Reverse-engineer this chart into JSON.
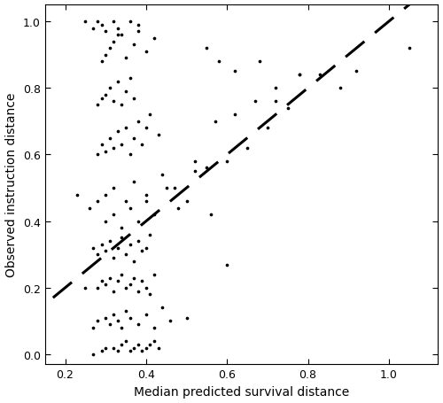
{
  "xlabel": "Median predicted survival distance",
  "ylabel": "Observed instruction distance",
  "xlim": [
    0.15,
    1.12
  ],
  "ylim": [
    -0.03,
    1.05
  ],
  "xticks": [
    0.2,
    0.4,
    0.6,
    0.8,
    1.0
  ],
  "yticks": [
    0.0,
    0.2,
    0.4,
    0.6,
    0.8,
    1.0
  ],
  "dashed_line_x": [
    0.17,
    1.08
  ],
  "dashed_line_y": [
    0.17,
    1.08
  ],
  "scatter_x": [
    0.27,
    0.29,
    0.3,
    0.32,
    0.33,
    0.34,
    0.35,
    0.36,
    0.37,
    0.38,
    0.39,
    0.4,
    0.41,
    0.42,
    0.43,
    0.27,
    0.28,
    0.3,
    0.31,
    0.32,
    0.33,
    0.34,
    0.35,
    0.36,
    0.38,
    0.4,
    0.42,
    0.44,
    0.46,
    0.5,
    0.28,
    0.29,
    0.3,
    0.31,
    0.32,
    0.33,
    0.34,
    0.35,
    0.36,
    0.37,
    0.38,
    0.39,
    0.4,
    0.41,
    0.42,
    0.27,
    0.28,
    0.29,
    0.3,
    0.31,
    0.32,
    0.33,
    0.34,
    0.35,
    0.36,
    0.37,
    0.38,
    0.39,
    0.4,
    0.41,
    0.28,
    0.29,
    0.3,
    0.31,
    0.32,
    0.33,
    0.34,
    0.35,
    0.36,
    0.37,
    0.38,
    0.39,
    0.4,
    0.41,
    0.43,
    0.28,
    0.29,
    0.3,
    0.31,
    0.32,
    0.33,
    0.34,
    0.35,
    0.36,
    0.37,
    0.29,
    0.3,
    0.31,
    0.32,
    0.33,
    0.35,
    0.37,
    0.38,
    0.4,
    0.42,
    0.25,
    0.27,
    0.28,
    0.29,
    0.3,
    0.32,
    0.33,
    0.34,
    0.36,
    0.38,
    0.26,
    0.28,
    0.3,
    0.32,
    0.35,
    0.37,
    0.4,
    0.44,
    0.47,
    0.5,
    0.3,
    0.32,
    0.34,
    0.36,
    0.38,
    0.4,
    0.42,
    0.45,
    0.48,
    0.52,
    0.55,
    0.57,
    0.6,
    0.62,
    0.65,
    0.67,
    0.7,
    0.72,
    0.75,
    0.78,
    0.55,
    0.58,
    0.62,
    0.68,
    0.72,
    0.78,
    0.83,
    0.88,
    0.92,
    1.05,
    0.23,
    0.25,
    0.52,
    0.56,
    0.6
  ],
  "scatter_y": [
    0.0,
    0.01,
    0.02,
    0.02,
    0.01,
    0.03,
    0.04,
    0.01,
    0.02,
    0.03,
    0.01,
    0.02,
    0.03,
    0.04,
    0.02,
    0.08,
    0.1,
    0.11,
    0.09,
    0.12,
    0.1,
    0.08,
    0.13,
    0.11,
    0.09,
    0.12,
    0.08,
    0.14,
    0.1,
    0.11,
    0.2,
    0.22,
    0.21,
    0.23,
    0.19,
    0.22,
    0.24,
    0.2,
    0.21,
    0.23,
    0.19,
    0.22,
    0.2,
    0.18,
    0.24,
    0.32,
    0.3,
    0.33,
    0.31,
    0.34,
    0.29,
    0.32,
    0.35,
    0.3,
    0.33,
    0.28,
    0.34,
    0.31,
    0.32,
    0.36,
    0.6,
    0.63,
    0.61,
    0.65,
    0.62,
    0.67,
    0.63,
    0.68,
    0.6,
    0.65,
    0.7,
    0.63,
    0.68,
    0.72,
    0.66,
    0.75,
    0.77,
    0.78,
    0.8,
    0.76,
    0.82,
    0.75,
    0.79,
    0.83,
    0.77,
    0.88,
    0.9,
    0.92,
    0.94,
    0.96,
    0.89,
    0.93,
    0.97,
    0.91,
    0.95,
    1.0,
    0.98,
    1.0,
    0.99,
    0.97,
    1.0,
    0.98,
    0.96,
    1.0,
    0.99,
    0.44,
    0.46,
    0.48,
    0.5,
    0.46,
    0.52,
    0.48,
    0.54,
    0.5,
    0.46,
    0.4,
    0.42,
    0.38,
    0.44,
    0.4,
    0.46,
    0.42,
    0.5,
    0.44,
    0.55,
    0.56,
    0.7,
    0.58,
    0.72,
    0.62,
    0.76,
    0.68,
    0.8,
    0.74,
    0.84,
    0.92,
    0.88,
    0.85,
    0.88,
    0.76,
    0.84,
    0.84,
    0.8,
    0.85,
    0.92,
    0.48,
    0.2,
    0.58,
    0.42,
    0.27
  ],
  "dot_size": 7,
  "dot_color": "#000000",
  "line_color": "#000000",
  "line_width": 2.2,
  "line_dash_on": 9,
  "line_dash_off": 5,
  "bg_color": "#ffffff",
  "label_fontsize": 10,
  "tick_fontsize": 9,
  "fig_width": 5.0,
  "fig_height": 4.56,
  "dpi": 100
}
